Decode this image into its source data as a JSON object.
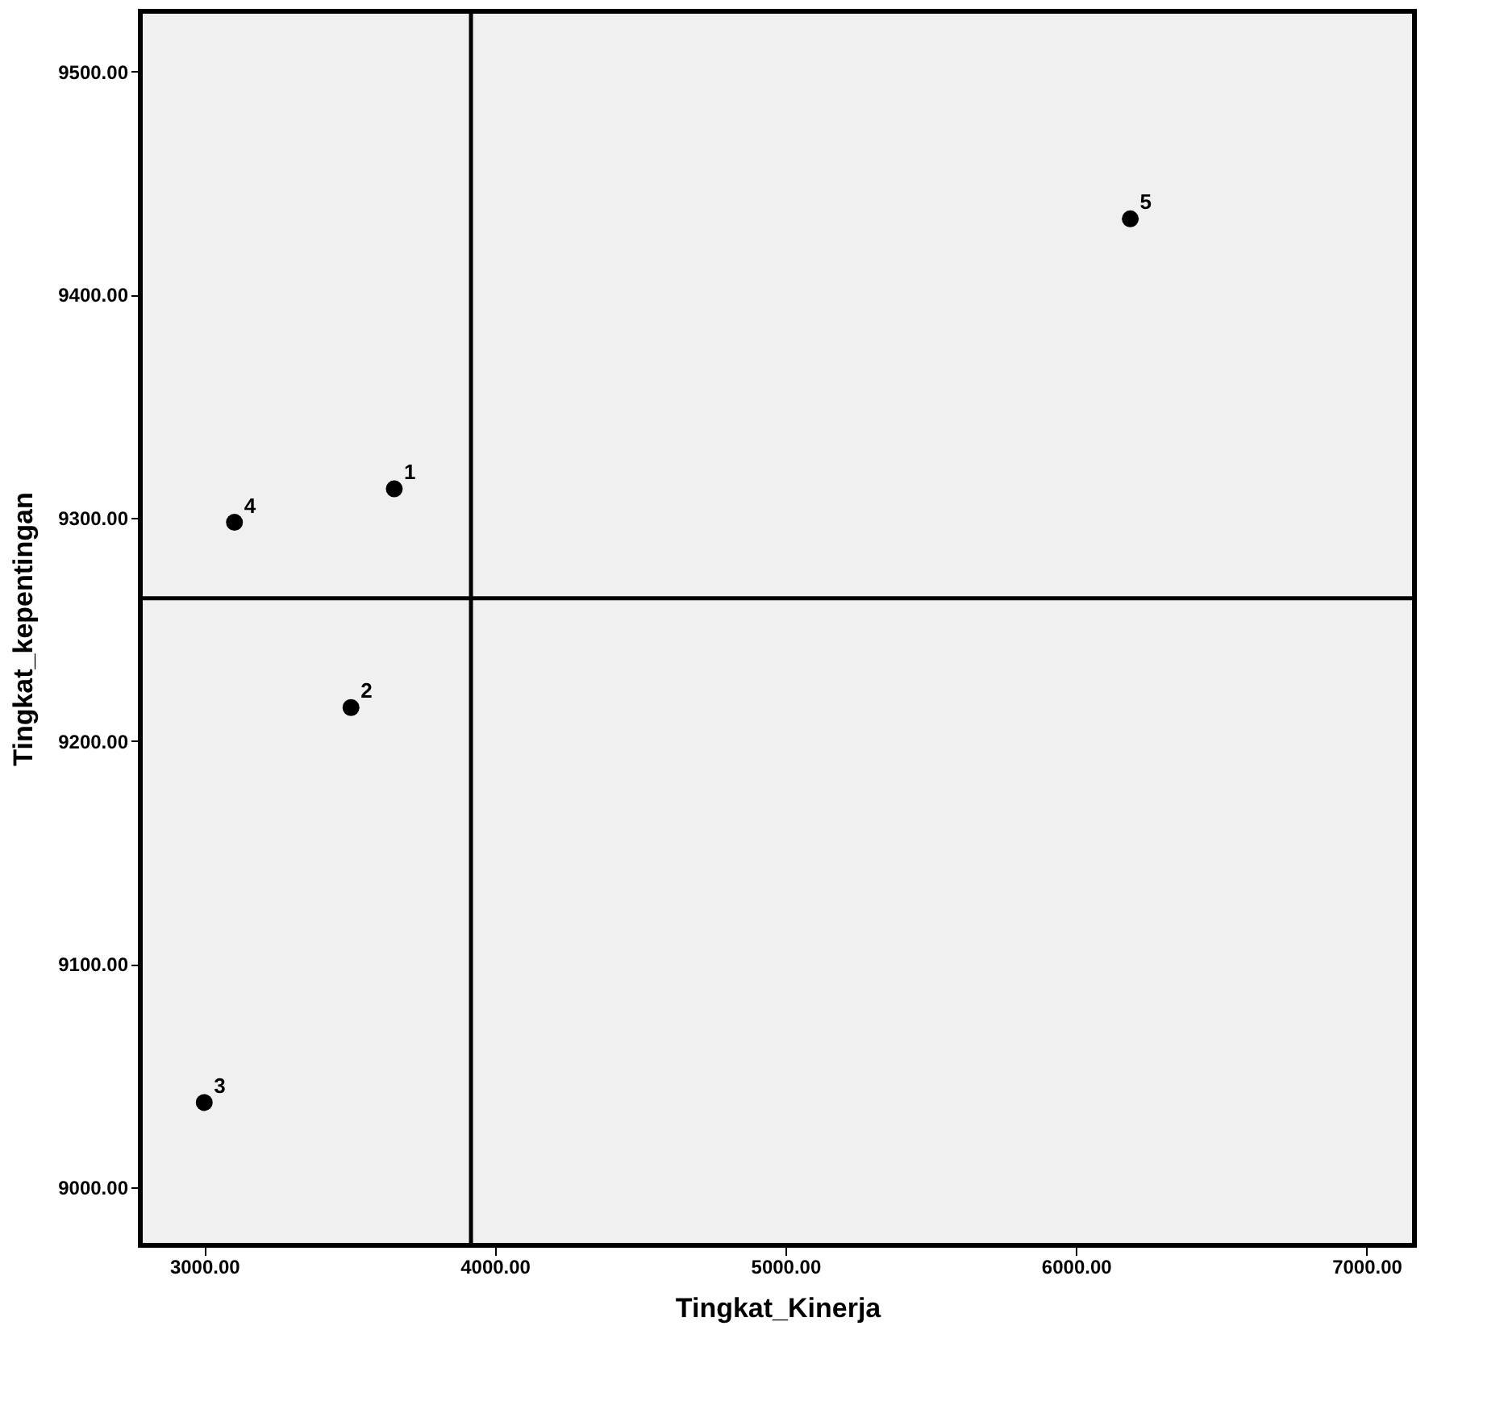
{
  "chart_data": {
    "type": "scatter",
    "xlabel": "Tingkat_Kinerja",
    "ylabel": "Tingkat_kepentingan",
    "x": [
      3654,
      3505,
      3000,
      3104,
      6187
    ],
    "values": [
      9313,
      9215,
      9038,
      9298,
      9434
    ],
    "color": "#000000",
    "marker": "circle",
    "xlim": [
      2780,
      7165
    ],
    "ylim": [
      8974,
      9527
    ],
    "xticks": [
      {
        "value": 3000,
        "label": "3000.00"
      },
      {
        "value": 4000,
        "label": "4000.00"
      },
      {
        "value": 5000,
        "label": "5000.00"
      },
      {
        "value": 6000,
        "label": "6000.00"
      },
      {
        "value": 7000,
        "label": "7000.00"
      }
    ],
    "yticks": [
      {
        "value": 9000,
        "label": "9000.00"
      },
      {
        "value": 9100,
        "label": "9100.00"
      },
      {
        "value": 9200,
        "label": "9200.00"
      },
      {
        "value": 9300,
        "label": "9300.00"
      },
      {
        "value": 9400,
        "label": "9400.00"
      },
      {
        "value": 9500,
        "label": "9500.00"
      }
    ],
    "ref_lines": [
      {
        "axis": "x",
        "value": 3918,
        "color": "#000000"
      },
      {
        "axis": "y",
        "value": 9264,
        "color": "#000000"
      }
    ],
    "annotations": [
      {
        "text": "1",
        "x": 3654,
        "y": 9313
      },
      {
        "text": "2",
        "x": 3505,
        "y": 9215
      },
      {
        "text": "3",
        "x": 3000,
        "y": 9038
      },
      {
        "text": "4",
        "x": 3104,
        "y": 9298
      },
      {
        "text": "5",
        "x": 6187,
        "y": 9434
      }
    ],
    "grid": false
  }
}
